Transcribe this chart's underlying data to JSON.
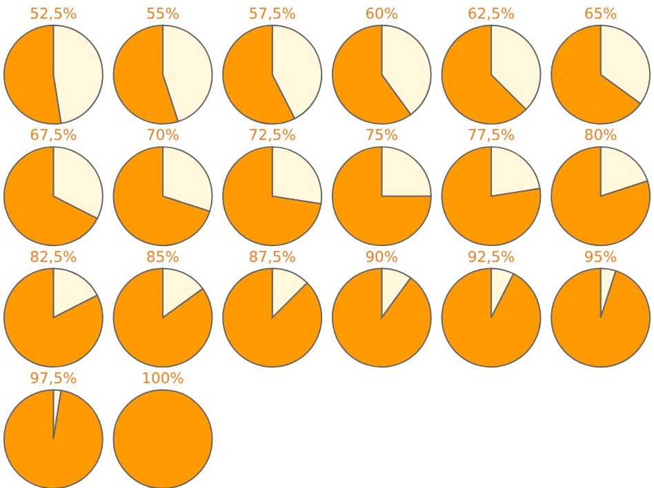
{
  "chart_data": [
    {
      "type": "pie",
      "title": "52,5%",
      "categories": [
        null,
        null
      ],
      "values": [
        47.5,
        52.5
      ],
      "colors": [
        "#fff8dc",
        "#ff9a00"
      ]
    },
    {
      "type": "pie",
      "title": "55%",
      "categories": [
        null,
        null
      ],
      "values": [
        45,
        55
      ],
      "colors": [
        "#fff8dc",
        "#ff9a00"
      ]
    },
    {
      "type": "pie",
      "title": "57,5%",
      "categories": [
        null,
        null
      ],
      "values": [
        42.5,
        57.5
      ],
      "colors": [
        "#fff8dc",
        "#ff9a00"
      ]
    },
    {
      "type": "pie",
      "title": "60%",
      "categories": [
        null,
        null
      ],
      "values": [
        40,
        60
      ],
      "colors": [
        "#fff8dc",
        "#ff9a00"
      ]
    },
    {
      "type": "pie",
      "title": "62,5%",
      "categories": [
        null,
        null
      ],
      "values": [
        37.5,
        62.5
      ],
      "colors": [
        "#fff8dc",
        "#ff9a00"
      ]
    },
    {
      "type": "pie",
      "title": "65%",
      "categories": [
        null,
        null
      ],
      "values": [
        35,
        65
      ],
      "colors": [
        "#fff8dc",
        "#ff9a00"
      ]
    },
    {
      "type": "pie",
      "title": "67,5%",
      "categories": [
        null,
        null
      ],
      "values": [
        32.5,
        67.5
      ],
      "colors": [
        "#fff8dc",
        "#ff9a00"
      ]
    },
    {
      "type": "pie",
      "title": "70%",
      "categories": [
        null,
        null
      ],
      "values": [
        30,
        70
      ],
      "colors": [
        "#fff8dc",
        "#ff9a00"
      ]
    },
    {
      "type": "pie",
      "title": "72,5%",
      "categories": [
        null,
        null
      ],
      "values": [
        27.5,
        72.5
      ],
      "colors": [
        "#fff8dc",
        "#ff9a00"
      ]
    },
    {
      "type": "pie",
      "title": "75%",
      "categories": [
        null,
        null
      ],
      "values": [
        25,
        75
      ],
      "colors": [
        "#fff8dc",
        "#ff9a00"
      ]
    },
    {
      "type": "pie",
      "title": "77,5%",
      "categories": [
        null,
        null
      ],
      "values": [
        22.5,
        77.5
      ],
      "colors": [
        "#fff8dc",
        "#ff9a00"
      ]
    },
    {
      "type": "pie",
      "title": "80%",
      "categories": [
        null,
        null
      ],
      "values": [
        20,
        80
      ],
      "colors": [
        "#fff8dc",
        "#ff9a00"
      ]
    },
    {
      "type": "pie",
      "title": "82,5%",
      "categories": [
        null,
        null
      ],
      "values": [
        17.5,
        82.5
      ],
      "colors": [
        "#fff8dc",
        "#ff9a00"
      ]
    },
    {
      "type": "pie",
      "title": "85%",
      "categories": [
        null,
        null
      ],
      "values": [
        15,
        85
      ],
      "colors": [
        "#fff8dc",
        "#ff9a00"
      ]
    },
    {
      "type": "pie",
      "title": "87,5%",
      "categories": [
        null,
        null
      ],
      "values": [
        12.5,
        87.5
      ],
      "colors": [
        "#fff8dc",
        "#ff9a00"
      ]
    },
    {
      "type": "pie",
      "title": "90%",
      "categories": [
        null,
        null
      ],
      "values": [
        10,
        90
      ],
      "colors": [
        "#fff8dc",
        "#ff9a00"
      ]
    },
    {
      "type": "pie",
      "title": "92,5%",
      "categories": [
        null,
        null
      ],
      "values": [
        7.5,
        92.5
      ],
      "colors": [
        "#fff8dc",
        "#ff9a00"
      ]
    },
    {
      "type": "pie",
      "title": "95%",
      "categories": [
        null,
        null
      ],
      "values": [
        5,
        95
      ],
      "colors": [
        "#fff8dc",
        "#ff9a00"
      ]
    },
    {
      "type": "pie",
      "title": "97,5%",
      "categories": [
        null,
        null
      ],
      "values": [
        2.5,
        97.5
      ],
      "colors": [
        "#fff8dc",
        "#ff9a00"
      ]
    },
    {
      "type": "pie",
      "title": "100%",
      "categories": [
        null,
        null
      ],
      "values": [
        0,
        100
      ],
      "colors": [
        "#fff8dc",
        "#ff9a00"
      ]
    }
  ]
}
